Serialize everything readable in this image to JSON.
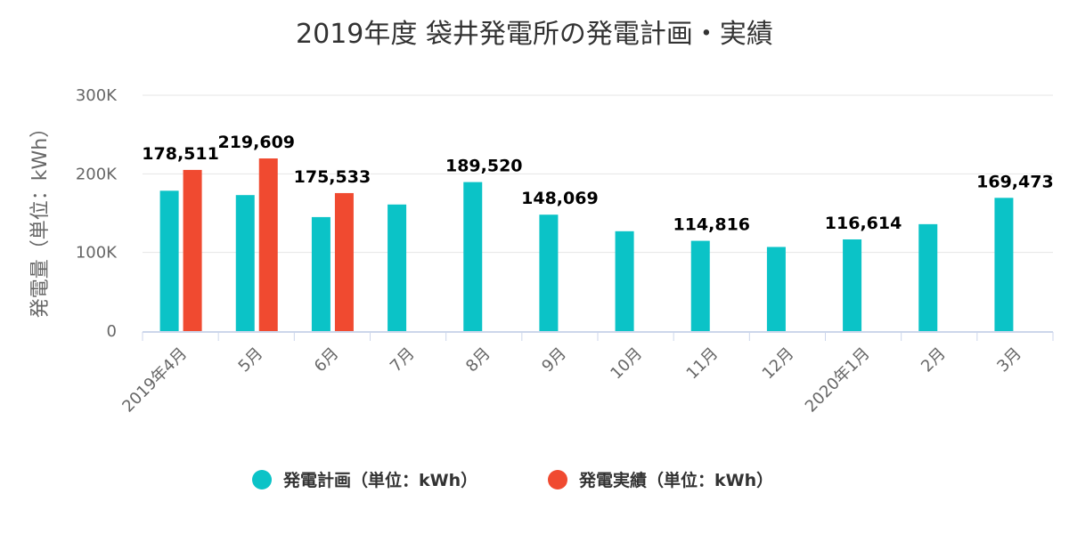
{
  "chart_data": {
    "type": "bar",
    "title": "2019年度 袋井発電所の発電計画・実績",
    "ylabel": "発電量（単位：kWh）",
    "xlabel": "",
    "ylim": [
      0,
      300000
    ],
    "yticks": [
      0,
      100000,
      200000,
      300000
    ],
    "ytick_labels": [
      "0",
      "100K",
      "200K",
      "300K"
    ],
    "grid": true,
    "legend_position": "bottom-center",
    "categories": [
      "2019年4月",
      "5月",
      "6月",
      "7月",
      "8月",
      "9月",
      "10月",
      "11月",
      "12月",
      "2020年1月",
      "2月",
      "3月"
    ],
    "series": [
      {
        "name": "発電計画（単位：kWh）",
        "color": "#0bc3c7",
        "values": [
          178511,
          173000,
          145000,
          161000,
          189520,
          148069,
          127000,
          114816,
          107000,
          116614,
          136000,
          169473
        ]
      },
      {
        "name": "発電実績（単位：kWh）",
        "color": "#f04a30",
        "values": [
          205000,
          219609,
          175533,
          null,
          null,
          null,
          null,
          null,
          null,
          null,
          null,
          null
        ]
      }
    ],
    "data_labels": [
      {
        "text": "178,511",
        "category": 0
      },
      {
        "text": "219,609",
        "category": 1
      },
      {
        "text": "175,533",
        "category": 2
      },
      {
        "text": "189,520",
        "category": 4
      },
      {
        "text": "148,069",
        "category": 5
      },
      {
        "text": "114,816",
        "category": 7
      },
      {
        "text": "116,614",
        "category": 9
      },
      {
        "text": "169,473",
        "category": 11
      }
    ]
  }
}
